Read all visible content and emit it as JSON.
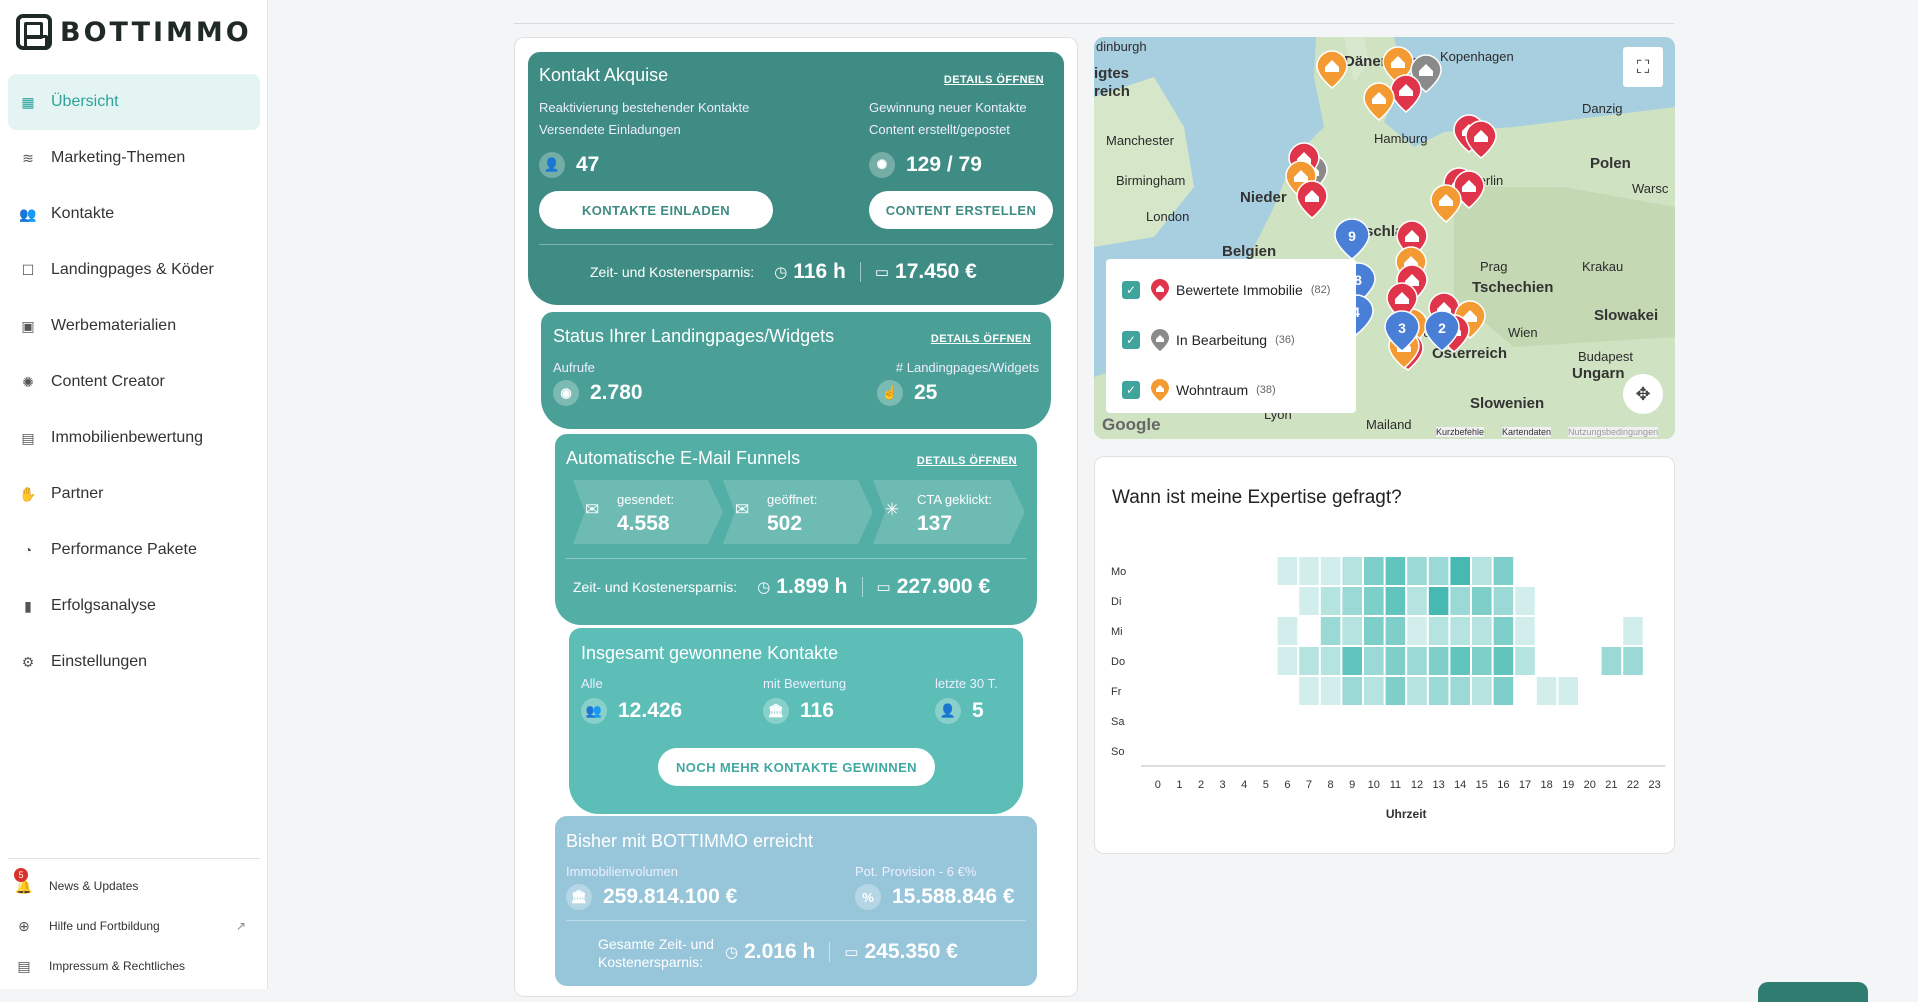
{
  "brand": {
    "name": "BOTTIMMO"
  },
  "nav": [
    {
      "label": "Übersicht",
      "icon": "dashboard-icon",
      "active": true
    },
    {
      "label": "Marketing-Themen",
      "icon": "database-icon"
    },
    {
      "label": "Kontakte",
      "icon": "people-icon"
    },
    {
      "label": "Landingpages & Köder",
      "icon": "landingpage-icon"
    },
    {
      "label": "Werbematerialien",
      "icon": "image-gallery-icon"
    },
    {
      "label": "Content Creator",
      "icon": "content-icon"
    },
    {
      "label": "Immobilienbewertung",
      "icon": "document-chart-icon"
    },
    {
      "label": "Partner",
      "icon": "handshake-icon"
    },
    {
      "label": "Performance Pakete",
      "icon": "speedometer-icon"
    },
    {
      "label": "Erfolgsanalyse",
      "icon": "bar-chart-icon"
    },
    {
      "label": "Einstellungen",
      "icon": "gear-icon"
    }
  ],
  "bottom_nav": {
    "news": {
      "label": "News & Updates",
      "badge": "5"
    },
    "help": {
      "label": "Hilfe und Fortbildung"
    },
    "imprint": {
      "label": "Impressum & Rechtliches"
    }
  },
  "acquisition": {
    "title": "Kontakt Akquise",
    "details": "DETAILS ÖFFNEN",
    "left_label1": "Reaktivierung bestehender Kontakte",
    "left_label2": "Versendete Einladungen",
    "left_value": "47",
    "right_label1": "Gewinnung neuer Kontakte",
    "right_label2": "Content erstellt/gepostet",
    "right_value": "129 / 79",
    "btn_invite": "KONTAKTE EINLADEN",
    "btn_content": "CONTENT ERSTELLEN",
    "savings_label": "Zeit- und Kostenersparnis:",
    "savings_time": "116 h",
    "savings_money": "17.450 €"
  },
  "landing": {
    "title": "Status Ihrer Landingpages/Widgets",
    "details": "DETAILS ÖFFNEN",
    "views_label": "Aufrufe",
    "views_value": "2.780",
    "count_label": "# Landingpages/Widgets",
    "count_value": "25"
  },
  "funnels": {
    "title": "Automatische E-Mail Funnels",
    "details": "DETAILS ÖFFNEN",
    "sent_label": "gesendet:",
    "sent_value": "4.558",
    "opened_label": "geöffnet:",
    "opened_value": "502",
    "cta_label": "CTA geklickt:",
    "cta_value": "137",
    "savings_label": "Zeit- und Kostenersparnis:",
    "savings_time": "1.899 h",
    "savings_money": "227.900 €"
  },
  "won": {
    "title": "Insgesamt gewonnene Kontakte",
    "all_label": "Alle",
    "all_value": "12.426",
    "rated_label": "mit Bewertung",
    "rated_value": "116",
    "recent_label": "letzte 30 T.",
    "recent_value": "5",
    "button": "NOCH MEHR KONTAKTE GEWINNEN"
  },
  "achieved": {
    "title": "Bisher mit BOTTIMMO erreicht",
    "volume_label": "Immobilienvolumen",
    "volume_value": "259.814.100 €",
    "provision_label": "Pot. Provision - 6 €%",
    "provision_value": "15.588.846 €",
    "savings_label1": "Gesamte Zeit- und",
    "savings_label2": "Kostenersparnis:",
    "savings_time": "2.016 h",
    "savings_money": "245.350 €"
  },
  "map": {
    "labels": {
      "hamburg": "Hamburg",
      "berlin": "Berlin",
      "polen": "Polen",
      "danemark": "Dänemark",
      "kopenhagen": "Kopenhagen",
      "danzig": "Danzig",
      "warschau": "Warsc",
      "manchester": "Manchester",
      "birmingham": "Birmingham",
      "london": "London",
      "belgien": "Belgien",
      "nieder": "Nieder",
      "deutschland": "tschland",
      "prag": "Prag",
      "krakau": "Krakau",
      "tschechien": "Tschechien",
      "slowakei": "Slowakei",
      "wien": "Wien",
      "budapest": "Budapest",
      "ungarn": "Ungarn",
      "osterreich": "Österreich",
      "slowenien": "Slowenien",
      "lyon": "Lyon",
      "mailand": "Mailand",
      "edinburgh": "dinburgh",
      "uk1": "igtes",
      "uk2": "reich",
      "munchen": "nchen"
    },
    "legend": [
      {
        "label": "Bewertete Immobilie",
        "count": "(82)",
        "color": "#e0344a"
      },
      {
        "label": "In Bearbeitung",
        "count": "(36)",
        "color": "#8a8a8a"
      },
      {
        "label": "Wohntraum",
        "count": "(38)",
        "color": "#f39a32"
      }
    ],
    "cluster_labels": [
      "9",
      "8",
      "4",
      "3",
      "2"
    ],
    "footer": {
      "google": "Google",
      "shortcuts": "Kurzbefehle",
      "mapdata": "Kartendaten",
      "terms": "Nutzungsbedingungen"
    }
  },
  "heatmap": {
    "title": "Wann ist meine Expertise gefragt?",
    "xlabel": "Uhrzeit",
    "days": [
      "Mo",
      "Di",
      "Mi",
      "Do",
      "Fr",
      "Sa",
      "So"
    ],
    "hours": [
      "0",
      "1",
      "2",
      "3",
      "4",
      "5",
      "6",
      "7",
      "8",
      "9",
      "10",
      "11",
      "12",
      "13",
      "14",
      "15",
      "16",
      "17",
      "18",
      "19",
      "20",
      "21",
      "22",
      "23"
    ],
    "base_color": "#2cb0a7"
  },
  "chart_data": {
    "type": "heatmap",
    "title": "Wann ist meine Expertise gefragt?",
    "xlabel": "Uhrzeit",
    "ylabel": "",
    "x": [
      0,
      1,
      2,
      3,
      4,
      5,
      6,
      7,
      8,
      9,
      10,
      11,
      12,
      13,
      14,
      15,
      16,
      17,
      18,
      19,
      20,
      21,
      22,
      23
    ],
    "y": [
      "Mo",
      "Di",
      "Mi",
      "Do",
      "Fr",
      "Sa",
      "So"
    ],
    "values": [
      [
        0,
        0,
        0,
        0,
        0,
        0,
        1,
        1,
        1,
        2,
        4,
        5,
        3,
        3,
        6,
        2,
        4,
        0,
        0,
        0,
        0,
        0,
        0,
        0
      ],
      [
        0,
        0,
        0,
        0,
        0,
        0,
        0,
        1,
        2,
        3,
        4,
        5,
        2,
        6,
        3,
        4,
        3,
        1,
        0,
        0,
        0,
        0,
        0,
        0
      ],
      [
        0,
        0,
        0,
        0,
        0,
        0,
        1,
        0,
        3,
        2,
        4,
        4,
        1,
        2,
        2,
        2,
        4,
        1,
        0,
        0,
        0,
        0,
        1,
        0
      ],
      [
        0,
        0,
        0,
        0,
        0,
        0,
        1,
        2,
        2,
        5,
        3,
        4,
        3,
        4,
        5,
        4,
        5,
        2,
        0,
        0,
        0,
        3,
        3,
        0
      ],
      [
        0,
        0,
        0,
        0,
        0,
        0,
        0,
        1,
        1,
        3,
        2,
        4,
        2,
        3,
        3,
        2,
        4,
        0,
        1,
        1,
        0,
        0,
        0,
        0
      ],
      [
        0,
        0,
        0,
        0,
        0,
        0,
        0,
        0,
        0,
        0,
        0,
        0,
        0,
        0,
        0,
        0,
        0,
        0,
        0,
        0,
        0,
        0,
        0,
        0
      ],
      [
        0,
        0,
        0,
        0,
        0,
        0,
        0,
        0,
        0,
        0,
        0,
        0,
        0,
        0,
        0,
        0,
        0,
        0,
        0,
        0,
        0,
        0,
        0,
        0
      ]
    ]
  }
}
